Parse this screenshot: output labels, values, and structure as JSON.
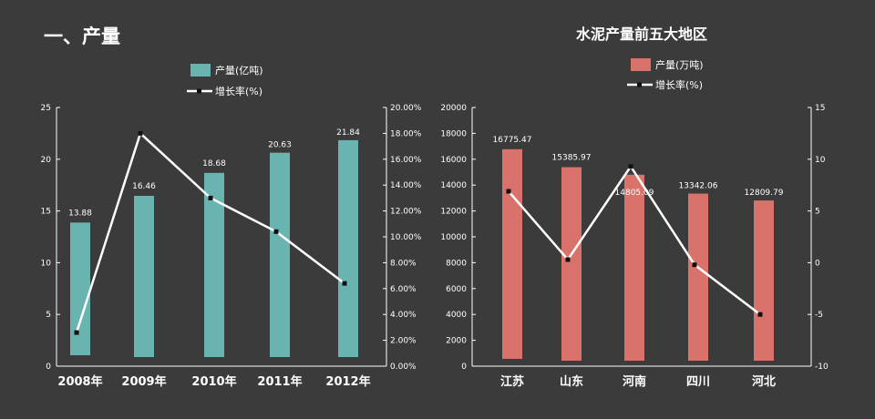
{
  "left_title": "一、产量",
  "right_title": "水泥产量前五大地区",
  "chart_data": [
    {
      "type": "bar",
      "title": "",
      "categories": [
        "2008年",
        "2009年",
        "2010年",
        "2011年",
        "2012年"
      ],
      "series": [
        {
          "name": "产量(亿吨)",
          "type": "bar",
          "axis": "left",
          "values": [
            13.88,
            16.46,
            18.68,
            20.63,
            21.84
          ],
          "labels": [
            "13.88",
            "16.46",
            "18.68",
            "20.63",
            "21.84"
          ],
          "color": "#69b3b1"
        },
        {
          "name": "增长率(%)",
          "type": "line",
          "axis": "right",
          "values": [
            2.6,
            18.0,
            13.0,
            10.4,
            6.4
          ],
          "color": "#ffffff"
        }
      ],
      "y_left": {
        "min": 0,
        "max": 25,
        "ticks": [
          "0",
          "5",
          "10",
          "15",
          "20",
          "25"
        ]
      },
      "y_right": {
        "min": 0,
        "max": 20,
        "ticks": [
          "0.00%",
          "2.00%",
          "4.00%",
          "6.00%",
          "8.00%",
          "10.00%",
          "12.00%",
          "14.00%",
          "16.00%",
          "18.00%",
          "20.00%"
        ]
      },
      "grid": false,
      "legend": "top"
    },
    {
      "type": "bar",
      "title": "水泥产量前五大地区",
      "categories": [
        "江苏",
        "山东",
        "河南",
        "四川",
        "河北"
      ],
      "series": [
        {
          "name": "产量(万吨)",
          "type": "bar",
          "axis": "left",
          "values": [
            16775.47,
            15385.97,
            14805.09,
            13342.06,
            12809.79
          ],
          "labels": [
            "16775.47",
            "15385.97",
            "14805.09",
            "13342.06",
            "12809.79"
          ],
          "color": "#d9726a"
        },
        {
          "name": "增长率(%)",
          "type": "line",
          "axis": "right",
          "values": [
            6.9,
            0.3,
            9.3,
            -0.2,
            -5.0
          ],
          "color": "#ffffff"
        }
      ],
      "y_left": {
        "min": 0,
        "max": 20000,
        "ticks": [
          "0",
          "2000",
          "4000",
          "6000",
          "8000",
          "10000",
          "12000",
          "14000",
          "16000",
          "18000",
          "20000"
        ]
      },
      "y_right": {
        "min": -10,
        "max": 15,
        "ticks": [
          "-10",
          "-5",
          "0",
          "5",
          "10",
          "15"
        ]
      },
      "grid": false,
      "legend": "top"
    }
  ]
}
